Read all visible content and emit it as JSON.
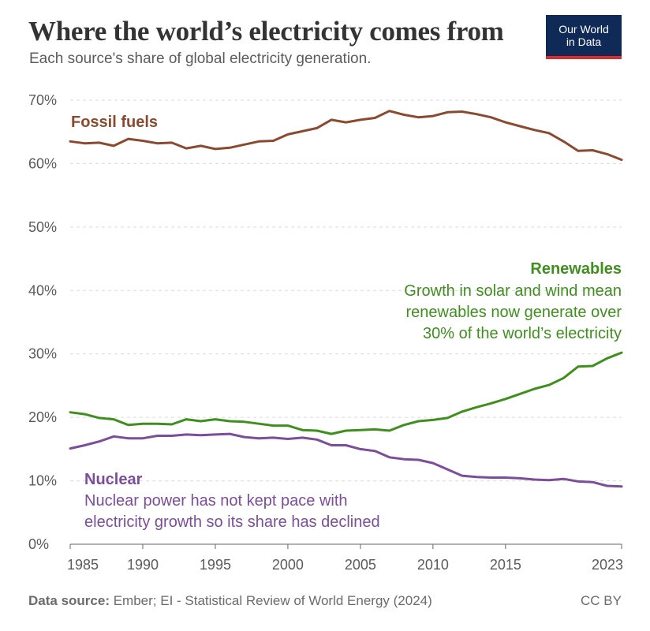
{
  "header": {
    "title": "Where the world’s electricity comes from",
    "subtitle": "Each source's share of global electricity generation.",
    "logo_line1": "Our World",
    "logo_line2": "in Data"
  },
  "footer": {
    "source_label": "Data source:",
    "source_text": "Ember; EI - Statistical Review of World Energy (2024)",
    "license": "CC BY"
  },
  "colors": {
    "fossil": "#8b4a2f",
    "renewables": "#3f8f1e",
    "nuclear": "#7b4d9c",
    "grid": "#d9d9d9",
    "axis": "#666666"
  },
  "chart_data": {
    "type": "line",
    "xlim": [
      1985,
      2023
    ],
    "ylim": [
      0,
      70
    ],
    "x_ticks": [
      "1985",
      "1990",
      "1995",
      "2000",
      "2005",
      "2010",
      "2015",
      "2023"
    ],
    "y_ticks": [
      "0%",
      "10%",
      "20%",
      "30%",
      "40%",
      "50%",
      "60%",
      "70%"
    ],
    "grid": true,
    "x": [
      1985,
      1986,
      1987,
      1988,
      1989,
      1990,
      1991,
      1992,
      1993,
      1994,
      1995,
      1996,
      1997,
      1998,
      1999,
      2000,
      2001,
      2002,
      2003,
      2004,
      2005,
      2006,
      2007,
      2008,
      2009,
      2010,
      2011,
      2012,
      2013,
      2014,
      2015,
      2016,
      2017,
      2018,
      2019,
      2020,
      2021,
      2022,
      2023
    ],
    "series": [
      {
        "name": "Fossil fuels",
        "color": "#8b4a2f",
        "values": [
          63.5,
          63.2,
          63.3,
          62.8,
          63.9,
          63.6,
          63.2,
          63.3,
          62.4,
          62.8,
          62.3,
          62.5,
          63.0,
          63.5,
          63.6,
          64.6,
          65.1,
          65.6,
          66.9,
          66.5,
          66.9,
          67.2,
          68.3,
          67.7,
          67.3,
          67.5,
          68.1,
          68.2,
          67.8,
          67.3,
          66.5,
          65.9,
          65.3,
          64.8,
          63.5,
          62.0,
          62.1,
          61.5,
          60.6
        ]
      },
      {
        "name": "Renewables",
        "color": "#3f8f1e",
        "annotation": [
          "Growth in solar and wind mean",
          "renewables now generate over",
          "30% of the world’s electricity"
        ],
        "values": [
          20.8,
          20.5,
          19.9,
          19.7,
          18.8,
          19.0,
          19.0,
          18.9,
          19.7,
          19.4,
          19.7,
          19.4,
          19.3,
          19.0,
          18.7,
          18.7,
          18.0,
          17.9,
          17.4,
          17.9,
          18.0,
          18.1,
          17.9,
          18.8,
          19.4,
          19.6,
          19.9,
          20.9,
          21.6,
          22.2,
          22.9,
          23.7,
          24.5,
          25.1,
          26.2,
          28.0,
          28.1,
          29.3,
          30.2
        ]
      },
      {
        "name": "Nuclear",
        "color": "#7b4d9c",
        "annotation": [
          "Nuclear power has not kept pace with",
          "electricity growth so its share has declined"
        ],
        "values": [
          15.1,
          15.6,
          16.2,
          17.0,
          16.7,
          16.7,
          17.1,
          17.1,
          17.3,
          17.2,
          17.3,
          17.4,
          16.9,
          16.7,
          16.8,
          16.6,
          16.8,
          16.5,
          15.6,
          15.6,
          15.0,
          14.7,
          13.7,
          13.4,
          13.3,
          12.8,
          11.8,
          10.8,
          10.6,
          10.5,
          10.5,
          10.4,
          10.2,
          10.1,
          10.3,
          9.9,
          9.8,
          9.2,
          9.1
        ]
      }
    ]
  }
}
